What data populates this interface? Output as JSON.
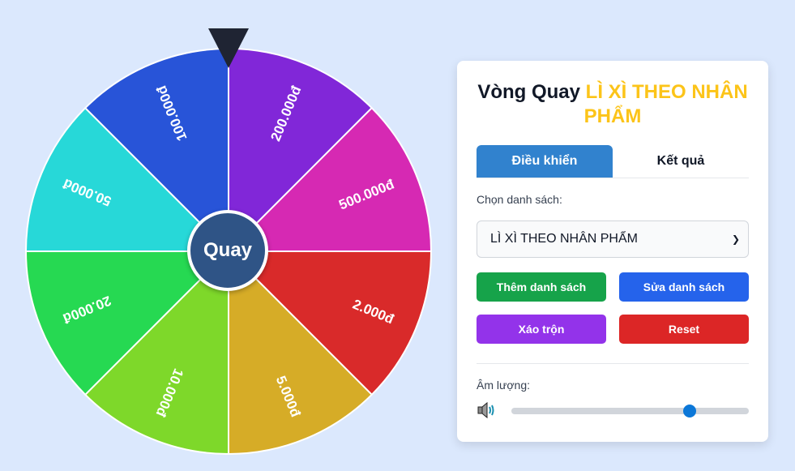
{
  "wheel": {
    "segments": [
      {
        "label": "200.000đ",
        "color": "#8127d8"
      },
      {
        "label": "500.000đ",
        "color": "#d629b3"
      },
      {
        "label": "2.000đ",
        "color": "#d92a2a"
      },
      {
        "label": "5.000đ",
        "color": "#d6ac27"
      },
      {
        "label": "10.000đ",
        "color": "#7ed82a"
      },
      {
        "label": "20.000đ",
        "color": "#26d952"
      },
      {
        "label": "50.000đ",
        "color": "#27d8d8"
      },
      {
        "label": "100.000đ",
        "color": "#2854d8"
      }
    ],
    "spin_label": "Quay",
    "pointer_color": "#1f2433"
  },
  "panel": {
    "title_prefix": "Vòng Quay",
    "title_highlight": "LÌ XÌ THEO NHÂN PHẨM",
    "tabs": [
      {
        "label": "Điều khiển",
        "active": true
      },
      {
        "label": "Kết quả",
        "active": false
      }
    ],
    "list_label": "Chọn danh sách:",
    "list_selected": "LÌ XÌ THEO NHÂN PHẨM",
    "buttons": {
      "add": "Thêm danh sách",
      "edit": "Sửa danh sách",
      "shuffle": "Xáo trộn",
      "reset": "Reset"
    },
    "volume_label": "Âm lượng:",
    "volume_percent": 75,
    "volume_icon": "speaker-icon"
  }
}
